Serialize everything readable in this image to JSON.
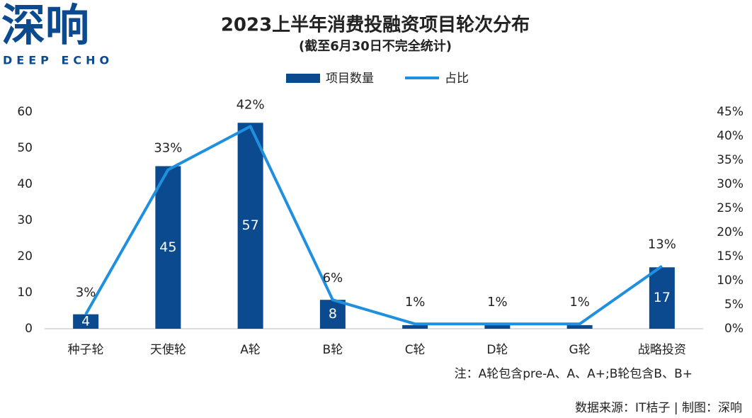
{
  "logo": {
    "name": "深响",
    "english": "DEEP ECHO"
  },
  "chart_data": {
    "type": "bar-line",
    "title": "2023上半年消费投融资项目轮次分布",
    "subtitle": "(截至6月30日不完全统计)",
    "note": "注：A轮包含pre-A、A、A+;B轮包含B、B+",
    "source": "数据来源：IT桔子 | 制图：深响",
    "categories": [
      "种子轮",
      "天使轮",
      "A轮",
      "B轮",
      "C轮",
      "D轮",
      "G轮",
      "战略投资"
    ],
    "series": [
      {
        "name": "项目数量",
        "type": "bar",
        "color": "#0b4a8f",
        "values": [
          4,
          45,
          57,
          8,
          1,
          1,
          1,
          17
        ],
        "value_labels": [
          "4",
          "45",
          "57",
          "8",
          null,
          null,
          null,
          "17"
        ]
      },
      {
        "name": "占比",
        "type": "line",
        "axis": "y2",
        "color": "#1f8fdf",
        "values": [
          3,
          33,
          42,
          6,
          1,
          1,
          1,
          13
        ],
        "value_labels": [
          "3%",
          "33%",
          "42%",
          "6%",
          "1%",
          "1%",
          "1%",
          "13%"
        ]
      }
    ],
    "ylim": [
      0,
      60
    ],
    "yticks": [
      0,
      10,
      20,
      30,
      40,
      50,
      60
    ],
    "y2lim": [
      0,
      45
    ],
    "y2ticks": [
      {
        "value": 0,
        "label": "0%"
      },
      {
        "value": 5,
        "label": "5%"
      },
      {
        "value": 10,
        "label": "10%"
      },
      {
        "value": 15,
        "label": "15%"
      },
      {
        "value": 20,
        "label": "20%"
      },
      {
        "value": 25,
        "label": "25%"
      },
      {
        "value": 30,
        "label": "30%"
      },
      {
        "value": 35,
        "label": "35%"
      },
      {
        "value": 40,
        "label": "40%"
      },
      {
        "value": 45,
        "label": "45%"
      }
    ],
    "legend": "top"
  }
}
